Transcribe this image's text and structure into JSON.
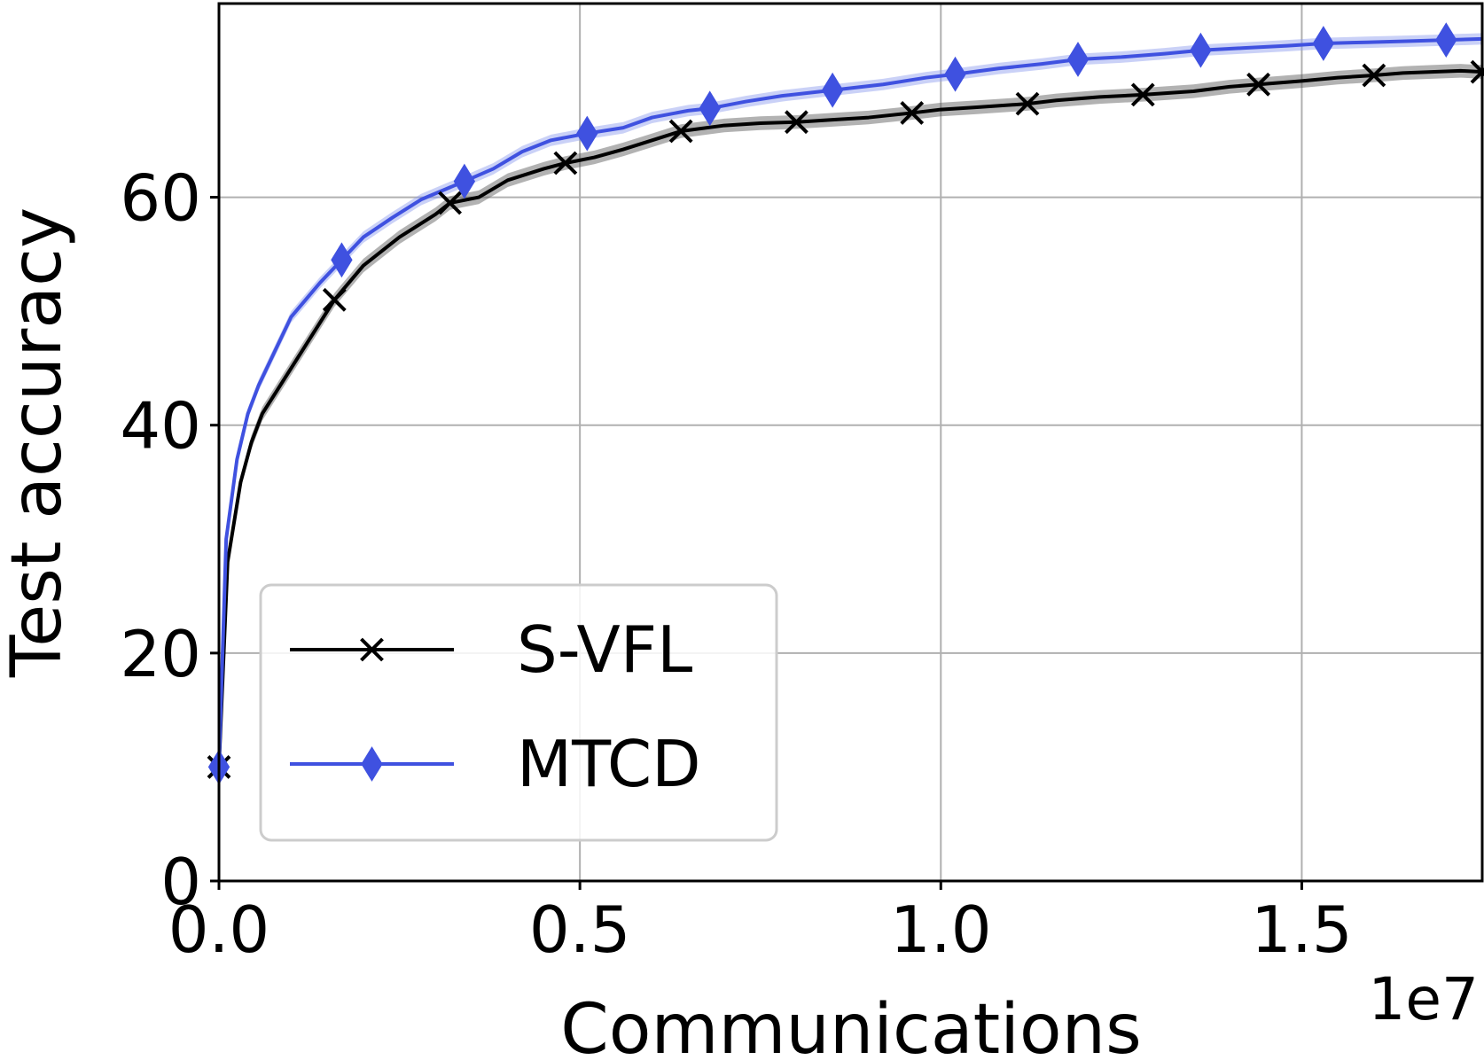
{
  "chart_data": {
    "type": "line",
    "title": "",
    "xlabel": "Communications",
    "ylabel": "Test accuracy",
    "x_offset_label": "1e7",
    "xlim": [
      0,
      17500000
    ],
    "ylim": [
      0,
      77
    ],
    "x_ticks": [
      0,
      5000000,
      10000000,
      15000000
    ],
    "x_tick_labels": [
      "0.0",
      "0.5",
      "1.0",
      "1.5"
    ],
    "y_ticks": [
      0,
      20,
      40,
      60
    ],
    "y_tick_labels": [
      "0",
      "20",
      "40",
      "60"
    ],
    "grid": true,
    "legend_position": "lower-left",
    "series": [
      {
        "name": "S-VFL",
        "color": "#000000",
        "band_color": "#555555",
        "marker": "x",
        "x": [
          0,
          120000,
          300000,
          450000,
          600000,
          800000,
          1000000,
          1250000,
          1600000,
          2000000,
          2500000,
          3000000,
          3200000,
          3600000,
          4000000,
          4500000,
          4800000,
          5200000,
          5600000,
          6000000,
          6400000,
          7000000,
          7500000,
          8000000,
          8500000,
          9000000,
          9600000,
          10000000,
          10500000,
          11200000,
          11600000,
          12200000,
          12800000,
          13500000,
          14000000,
          14400000,
          15000000,
          15500000,
          16000000,
          16400000,
          16800000,
          17200000,
          17500000
        ],
        "y": [
          10,
          28,
          35,
          38.5,
          41,
          43,
          45,
          47.5,
          51,
          54,
          56.5,
          58.5,
          59.5,
          60,
          61.5,
          62.5,
          63,
          63.5,
          64.2,
          65,
          65.8,
          66.3,
          66.5,
          66.6,
          66.8,
          67,
          67.4,
          67.7,
          67.9,
          68.2,
          68.5,
          68.8,
          69,
          69.3,
          69.7,
          69.9,
          70.2,
          70.5,
          70.7,
          70.9,
          71.0,
          71.1,
          71.0
        ],
        "marker_x": [
          0,
          1600000,
          3200000,
          4800000,
          6400000,
          8000000,
          9600000,
          11200000,
          12800000,
          14400000,
          16000000,
          17500000
        ],
        "band": 0.6
      },
      {
        "name": "MTCD",
        "color": "#3f51e0",
        "band_color": "#8a98ee",
        "marker": "diamond",
        "x": [
          0,
          100000,
          250000,
          400000,
          550000,
          700000,
          850000,
          1000000,
          1200000,
          1400000,
          1700000,
          2000000,
          2400000,
          2800000,
          3400000,
          3800000,
          4200000,
          4600000,
          5100000,
          5600000,
          6000000,
          6500000,
          6800000,
          7300000,
          7800000,
          8500000,
          9200000,
          9800000,
          10200000,
          10800000,
          11400000,
          11900000,
          12500000,
          13100000,
          13600000,
          14200000,
          14800000,
          15300000,
          15900000,
          16500000,
          17000000,
          17500000
        ],
        "y": [
          10,
          30,
          37,
          41,
          43.5,
          45.5,
          47.5,
          49.5,
          51,
          52.5,
          54.5,
          56.5,
          58.2,
          59.8,
          61.4,
          62.5,
          64,
          65,
          65.6,
          66.1,
          67,
          67.6,
          67.8,
          68.4,
          68.9,
          69.4,
          69.9,
          70.5,
          70.8,
          71.3,
          71.7,
          72.1,
          72.3,
          72.6,
          72.9,
          73.1,
          73.3,
          73.5,
          73.6,
          73.7,
          73.8,
          73.9
        ],
        "marker_x": [
          0,
          1700000,
          3400000,
          5100000,
          6800000,
          8500000,
          10200000,
          11900000,
          13600000,
          15300000,
          17000000
        ],
        "band": 0.5
      }
    ]
  }
}
